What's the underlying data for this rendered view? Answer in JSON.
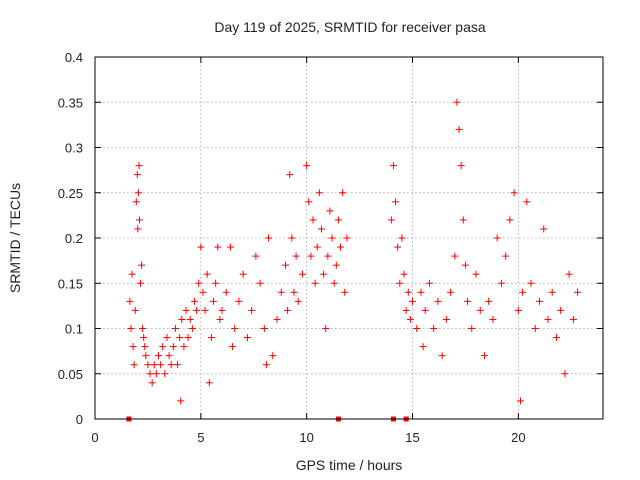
{
  "chart_data": {
    "type": "scatter",
    "title": "Day 119 of 2025, SRMTID for receiver pasa",
    "xlabel": "GPS time / hours",
    "ylabel": "SRMTID / TECUs",
    "xlim": [
      0,
      24
    ],
    "ylim": [
      0,
      0.4
    ],
    "x_ticks": [
      0,
      5,
      10,
      15,
      20
    ],
    "x_tick_labels": [
      "0",
      "5",
      "10",
      "15",
      "20"
    ],
    "y_ticks": [
      0,
      0.05,
      0.1,
      0.15,
      0.2,
      0.25,
      0.3,
      0.35,
      0.4
    ],
    "y_tick_labels": [
      "0",
      "0.05",
      "0.1",
      "0.15",
      "0.2",
      "0.25",
      "0.3",
      "0.35",
      "0.4"
    ],
    "grid": true,
    "marker": "+",
    "color": "#ff0000",
    "zero_markers_x": [
      1.6,
      11.5,
      14.1,
      14.7
    ],
    "series": [
      {
        "name": "SRMTID",
        "points": [
          [
            1.65,
            0.13
          ],
          [
            1.7,
            0.1
          ],
          [
            1.75,
            0.16
          ],
          [
            1.8,
            0.08
          ],
          [
            1.85,
            0.06
          ],
          [
            1.9,
            0.12
          ],
          [
            1.95,
            0.24
          ],
          [
            2.0,
            0.27
          ],
          [
            2.02,
            0.21
          ],
          [
            2.05,
            0.25
          ],
          [
            2.08,
            0.28
          ],
          [
            2.1,
            0.22
          ],
          [
            2.15,
            0.15
          ],
          [
            2.2,
            0.17
          ],
          [
            2.25,
            0.1
          ],
          [
            2.3,
            0.09
          ],
          [
            2.35,
            0.08
          ],
          [
            2.4,
            0.07
          ],
          [
            2.5,
            0.06
          ],
          [
            2.6,
            0.05
          ],
          [
            2.7,
            0.04
          ],
          [
            2.8,
            0.06
          ],
          [
            2.9,
            0.05
          ],
          [
            3.0,
            0.07
          ],
          [
            3.1,
            0.06
          ],
          [
            3.2,
            0.08
          ],
          [
            3.3,
            0.05
          ],
          [
            3.4,
            0.09
          ],
          [
            3.5,
            0.07
          ],
          [
            3.6,
            0.06
          ],
          [
            3.7,
            0.08
          ],
          [
            3.8,
            0.1
          ],
          [
            3.9,
            0.06
          ],
          [
            4.0,
            0.09
          ],
          [
            4.05,
            0.02
          ],
          [
            4.1,
            0.11
          ],
          [
            4.2,
            0.08
          ],
          [
            4.3,
            0.12
          ],
          [
            4.4,
            0.09
          ],
          [
            4.5,
            0.11
          ],
          [
            4.6,
            0.1
          ],
          [
            4.7,
            0.13
          ],
          [
            4.8,
            0.12
          ],
          [
            4.9,
            0.15
          ],
          [
            5.0,
            0.19
          ],
          [
            5.1,
            0.14
          ],
          [
            5.2,
            0.12
          ],
          [
            5.3,
            0.16
          ],
          [
            5.4,
            0.04
          ],
          [
            5.5,
            0.09
          ],
          [
            5.6,
            0.13
          ],
          [
            5.7,
            0.15
          ],
          [
            5.8,
            0.19
          ],
          [
            5.9,
            0.11
          ],
          [
            6.0,
            0.12
          ],
          [
            6.2,
            0.14
          ],
          [
            6.4,
            0.19
          ],
          [
            6.5,
            0.08
          ],
          [
            6.6,
            0.1
          ],
          [
            6.8,
            0.13
          ],
          [
            7.0,
            0.16
          ],
          [
            7.2,
            0.09
          ],
          [
            7.4,
            0.12
          ],
          [
            7.6,
            0.18
          ],
          [
            7.8,
            0.15
          ],
          [
            8.0,
            0.1
          ],
          [
            8.1,
            0.06
          ],
          [
            8.2,
            0.2
          ],
          [
            8.4,
            0.07
          ],
          [
            8.6,
            0.11
          ],
          [
            8.8,
            0.14
          ],
          [
            9.0,
            0.17
          ],
          [
            9.1,
            0.12
          ],
          [
            9.2,
            0.27
          ],
          [
            9.3,
            0.2
          ],
          [
            9.4,
            0.14
          ],
          [
            9.5,
            0.18
          ],
          [
            9.6,
            0.13
          ],
          [
            9.8,
            0.16
          ],
          [
            10.0,
            0.28
          ],
          [
            10.1,
            0.24
          ],
          [
            10.2,
            0.18
          ],
          [
            10.3,
            0.22
          ],
          [
            10.4,
            0.15
          ],
          [
            10.5,
            0.19
          ],
          [
            10.6,
            0.25
          ],
          [
            10.7,
            0.21
          ],
          [
            10.8,
            0.16
          ],
          [
            10.9,
            0.1
          ],
          [
            11.0,
            0.18
          ],
          [
            11.1,
            0.23
          ],
          [
            11.2,
            0.2
          ],
          [
            11.3,
            0.15
          ],
          [
            11.4,
            0.17
          ],
          [
            11.5,
            0.22
          ],
          [
            11.6,
            0.19
          ],
          [
            11.7,
            0.25
          ],
          [
            11.8,
            0.14
          ],
          [
            11.9,
            0.2
          ],
          [
            14.0,
            0.22
          ],
          [
            14.1,
            0.28
          ],
          [
            14.2,
            0.24
          ],
          [
            14.3,
            0.19
          ],
          [
            14.4,
            0.15
          ],
          [
            14.5,
            0.2
          ],
          [
            14.6,
            0.16
          ],
          [
            14.7,
            0.12
          ],
          [
            14.8,
            0.14
          ],
          [
            14.9,
            0.11
          ],
          [
            15.0,
            0.13
          ],
          [
            15.2,
            0.1
          ],
          [
            15.4,
            0.14
          ],
          [
            15.5,
            0.08
          ],
          [
            15.6,
            0.12
          ],
          [
            15.8,
            0.15
          ],
          [
            16.0,
            0.1
          ],
          [
            16.2,
            0.13
          ],
          [
            16.4,
            0.07
          ],
          [
            16.6,
            0.11
          ],
          [
            16.8,
            0.14
          ],
          [
            17.0,
            0.18
          ],
          [
            17.1,
            0.35
          ],
          [
            17.2,
            0.32
          ],
          [
            17.3,
            0.28
          ],
          [
            17.4,
            0.22
          ],
          [
            17.5,
            0.17
          ],
          [
            17.6,
            0.13
          ],
          [
            17.8,
            0.1
          ],
          [
            18.0,
            0.16
          ],
          [
            18.2,
            0.12
          ],
          [
            18.4,
            0.07
          ],
          [
            18.6,
            0.13
          ],
          [
            18.8,
            0.11
          ],
          [
            19.0,
            0.2
          ],
          [
            19.2,
            0.15
          ],
          [
            19.4,
            0.18
          ],
          [
            19.6,
            0.22
          ],
          [
            19.8,
            0.25
          ],
          [
            20.0,
            0.12
          ],
          [
            20.1,
            0.02
          ],
          [
            20.2,
            0.14
          ],
          [
            20.4,
            0.24
          ],
          [
            20.6,
            0.15
          ],
          [
            20.8,
            0.1
          ],
          [
            21.0,
            0.13
          ],
          [
            21.2,
            0.21
          ],
          [
            21.4,
            0.11
          ],
          [
            21.6,
            0.14
          ],
          [
            21.8,
            0.09
          ],
          [
            22.0,
            0.12
          ],
          [
            22.2,
            0.05
          ],
          [
            22.4,
            0.16
          ],
          [
            22.6,
            0.11
          ],
          [
            22.8,
            0.14
          ]
        ]
      }
    ]
  }
}
